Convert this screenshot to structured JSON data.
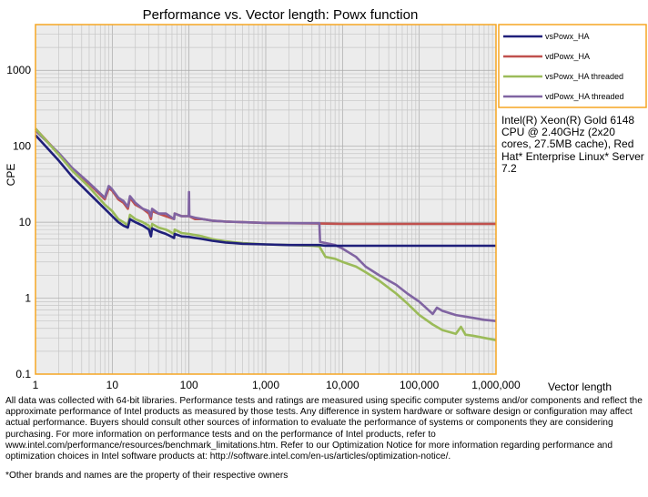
{
  "chart_data": {
    "type": "line",
    "title": "Performance vs. Vector length: Powx function",
    "xlabel": "Vector length",
    "ylabel": "CPE",
    "x_scale": "log",
    "y_scale": "log",
    "xlim": [
      1,
      1000000
    ],
    "ylim": [
      0.1,
      4000
    ],
    "x_ticks": [
      1,
      10,
      100,
      1000,
      10000,
      100000,
      1000000
    ],
    "x_tick_labels": [
      "1",
      "10",
      "100",
      "1,000",
      "10,000",
      "100,000",
      "1,000,000"
    ],
    "y_ticks": [
      0.1,
      1,
      10,
      100,
      1000
    ],
    "y_tick_labels": [
      "0.1",
      "1",
      "10",
      "100",
      "1000"
    ],
    "grid": true,
    "legend_position": "right-top",
    "series": [
      {
        "name": "vsPowx_HA",
        "color": "#1f1f7a",
        "x": [
          1,
          2,
          3,
          5,
          8,
          10,
          12,
          14,
          16,
          17,
          20,
          25,
          30,
          32,
          33,
          40,
          50,
          64,
          65,
          80,
          100,
          120,
          150,
          200,
          300,
          500,
          1000,
          2000,
          5000,
          6000,
          10000,
          100000,
          1000000
        ],
        "y": [
          140,
          65,
          40,
          24,
          15,
          12,
          10,
          9,
          8.5,
          11,
          10,
          9,
          8,
          6.5,
          8.3,
          7.6,
          7,
          6.2,
          7,
          6.5,
          6.4,
          6.2,
          6,
          5.7,
          5.4,
          5.2,
          5.1,
          5,
          5,
          4.9,
          4.9,
          4.9,
          4.9
        ]
      },
      {
        "name": "vdPowx_HA",
        "color": "#c0504d",
        "x": [
          1,
          2,
          3,
          5,
          8,
          9,
          10,
          12,
          14,
          16,
          17,
          20,
          25,
          30,
          32,
          33,
          40,
          50,
          64,
          65,
          80,
          100,
          120,
          150,
          200,
          300,
          500,
          1000,
          5000,
          10000,
          100000,
          1000000
        ],
        "y": [
          170,
          80,
          50,
          32,
          20,
          28,
          26,
          20,
          18,
          15,
          21,
          17,
          15,
          13,
          11,
          14,
          13,
          12,
          11,
          13,
          12,
          12,
          11,
          11,
          10.5,
          10.2,
          10,
          9.8,
          9.6,
          9.5,
          9.5,
          9.5
        ]
      },
      {
        "name": "vsPowx_HA threaded",
        "color": "#9bbb59",
        "x": [
          1,
          2,
          3,
          5,
          8,
          10,
          12,
          14,
          16,
          17,
          20,
          25,
          30,
          32,
          33,
          40,
          50,
          64,
          65,
          80,
          100,
          120,
          150,
          200,
          300,
          500,
          1000,
          2000,
          4000,
          5000,
          6000,
          8000,
          10000,
          15000,
          20000,
          30000,
          50000,
          70000,
          100000,
          150000,
          200000,
          300000,
          350000,
          400000,
          500000,
          700000,
          1000000
        ],
        "y": [
          170,
          78,
          48,
          29,
          17,
          14,
          11,
          10,
          9,
          12.5,
          11,
          10,
          9,
          7,
          9.5,
          8.5,
          8,
          7,
          8,
          7.2,
          7,
          6.8,
          6.5,
          6,
          5.6,
          5.3,
          5.1,
          5,
          4.9,
          4.8,
          3.5,
          3.3,
          3,
          2.6,
          2.2,
          1.7,
          1.15,
          0.85,
          0.6,
          0.45,
          0.38,
          0.34,
          0.42,
          0.33,
          0.32,
          0.3,
          0.28
        ]
      },
      {
        "name": "vdPowx_HA threaded",
        "color": "#8064a2",
        "x": [
          1,
          2,
          3,
          5,
          8,
          9,
          10,
          12,
          14,
          16,
          17,
          20,
          25,
          30,
          32,
          33,
          40,
          50,
          64,
          65,
          80,
          99,
          100,
          101,
          120,
          150,
          200,
          300,
          500,
          1000,
          2000,
          5000,
          5100,
          8000,
          10000,
          15000,
          20000,
          30000,
          50000,
          70000,
          100000,
          150000,
          170000,
          200000,
          300000,
          500000,
          700000,
          1000000
        ],
        "y": [
          160,
          82,
          52,
          33,
          21,
          30,
          27,
          21,
          19,
          16,
          22,
          18,
          15,
          14,
          12,
          15,
          13,
          13,
          11,
          13,
          12,
          12,
          25,
          12,
          11.5,
          11,
          10.5,
          10.2,
          10,
          9.8,
          9.7,
          9.7,
          5.5,
          5,
          4.5,
          3.5,
          2.6,
          2,
          1.5,
          1.15,
          0.9,
          0.62,
          0.75,
          0.68,
          0.6,
          0.55,
          0.52,
          0.5
        ]
      }
    ]
  },
  "note": "Intel(R) Xeon(R) Gold 6148 CPU @ 2.40GHz (2x20 cores, 27.5MB cache), Red Hat* Enterprise Linux* Server 7.2",
  "disclaimer": "All data was collected with 64-bit libraries. Performance tests and ratings are measured using specific computer systems and/or components and reflect the approximate performance of Intel products as measured by those tests. Any difference in system hardware or software design or configuration may affect actual performance. Buyers should consult other sources of information to evaluate the performance of systems or components they are considering purchasing. For more information on performance tests and on the performance of Intel products, refer to www.intel.com/performance/resources/benchmark_limitations.htm. Refer to our Optimization Notice for more information regarding performance and optimization choices in Intel software products at: http://software.intel.com/en-us/articles/optimization-notice/.",
  "footnote": "*Other brands and names are the property of their respective owners"
}
